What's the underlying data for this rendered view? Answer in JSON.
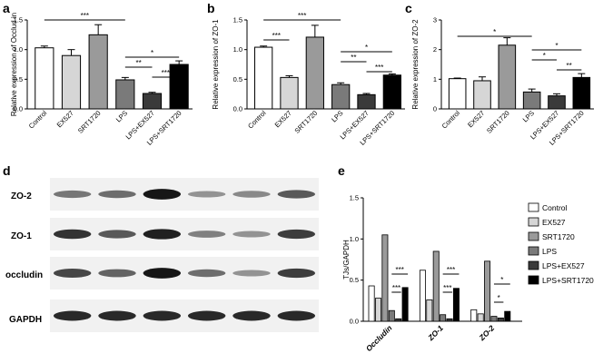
{
  "colors": {
    "Control": "#ffffff",
    "EX527": "#d6d6d6",
    "SRT1720": "#9a9a9a",
    "LPS": "#7a7a7a",
    "LPS+EX527": "#3a3a3a",
    "LPS+SRT1720": "#000000"
  },
  "panel_labels": {
    "a": "a",
    "b": "b",
    "c": "c",
    "d": "d",
    "e": "e"
  },
  "blot": {
    "rows": [
      "ZO-2",
      "ZO-1",
      "occludin",
      "GAPDH"
    ],
    "intensity": [
      [
        0.45,
        0.5,
        0.95,
        0.3,
        0.35,
        0.6
      ],
      [
        0.8,
        0.6,
        0.9,
        0.4,
        0.3,
        0.75
      ],
      [
        0.7,
        0.55,
        0.95,
        0.5,
        0.3,
        0.75
      ],
      [
        0.85,
        0.85,
        0.85,
        0.85,
        0.85,
        0.85
      ]
    ]
  },
  "chart_data": [
    {
      "type": "bar",
      "panel": "a",
      "ylabel": "Relative expression of Occlud in",
      "categories": [
        "Control",
        "EX527",
        "SRT1720",
        "LPS",
        "LPS+EX527",
        "LPS+SRT1720"
      ],
      "values": [
        1.03,
        0.9,
        1.25,
        0.49,
        0.26,
        0.75
      ],
      "errors": [
        0.03,
        0.1,
        0.17,
        0.04,
        0.02,
        0.06
      ],
      "ylim": [
        0,
        1.5
      ],
      "yticks": [
        "0.0",
        "0.5",
        "1.0",
        "1.5"
      ],
      "significance": [
        {
          "from": 0,
          "to": 3,
          "label": "***"
        },
        {
          "from": 3,
          "to": 5,
          "label": "*"
        },
        {
          "from": 3,
          "to": 4,
          "label": "**"
        },
        {
          "from": 4,
          "to": 5,
          "label": "***"
        }
      ]
    },
    {
      "type": "bar",
      "panel": "b",
      "ylabel": "Relative expression of ZO-1",
      "categories": [
        "Control",
        "EX527",
        "SRT1720",
        "LPS",
        "LPS+EX527",
        "LPS+SRT1720"
      ],
      "values": [
        1.04,
        0.53,
        1.21,
        0.41,
        0.24,
        0.57
      ],
      "errors": [
        0.02,
        0.03,
        0.2,
        0.03,
        0.02,
        0.02
      ],
      "ylim": [
        0,
        1.5
      ],
      "yticks": [
        "0.0",
        "0.5",
        "1.0",
        "1.5"
      ],
      "significance": [
        {
          "from": 0,
          "to": 3,
          "label": "***"
        },
        {
          "from": 0,
          "to": 1,
          "label": "***"
        },
        {
          "from": 3,
          "to": 5,
          "label": "*"
        },
        {
          "from": 3,
          "to": 4,
          "label": "**"
        },
        {
          "from": 4,
          "to": 5,
          "label": "***"
        }
      ]
    },
    {
      "type": "bar",
      "panel": "c",
      "ylabel": "Relative expression of ZO-2",
      "categories": [
        "Control",
        "EX527",
        "SRT1720",
        "LPS",
        "LPS+EX527",
        "LPS+SRT1720"
      ],
      "values": [
        1.02,
        0.95,
        2.15,
        0.57,
        0.44,
        1.06
      ],
      "errors": [
        0.02,
        0.13,
        0.25,
        0.1,
        0.07,
        0.13
      ],
      "ylim": [
        0,
        3
      ],
      "yticks": [
        "0",
        "1",
        "2",
        "3"
      ],
      "significance": [
        {
          "from": 0,
          "to": 3,
          "label": "*"
        },
        {
          "from": 3,
          "to": 5,
          "label": "*"
        },
        {
          "from": 3,
          "to": 4,
          "label": "*"
        },
        {
          "from": 4,
          "to": 5,
          "label": "**"
        }
      ]
    },
    {
      "type": "bar",
      "panel": "e",
      "ylabel": "TJs/GAPDH",
      "categories": [
        "Occludin",
        "ZO-1",
        "ZO-2"
      ],
      "ylim": [
        0,
        1.5
      ],
      "yticks": [
        "0.0",
        "0.5",
        "1.0",
        "1.5"
      ],
      "legend": "right",
      "series": [
        {
          "name": "Control",
          "values": [
            0.43,
            0.62,
            0.14
          ]
        },
        {
          "name": "EX527",
          "values": [
            0.28,
            0.26,
            0.09
          ]
        },
        {
          "name": "SRT1720",
          "values": [
            1.05,
            0.85,
            0.73
          ]
        },
        {
          "name": "LPS",
          "values": [
            0.13,
            0.08,
            0.06
          ]
        },
        {
          "name": "LPS+EX527",
          "values": [
            0.03,
            0.03,
            0.04
          ]
        },
        {
          "name": "LPS+SRT1720",
          "values": [
            0.41,
            0.4,
            0.12
          ]
        }
      ],
      "significance": [
        {
          "group": 0,
          "from": 3,
          "to": 5,
          "level": 1,
          "label": "***"
        },
        {
          "group": 0,
          "from": 3,
          "to": 4,
          "level": 0,
          "label": "***"
        },
        {
          "group": 1,
          "from": 3,
          "to": 5,
          "level": 1,
          "label": "***"
        },
        {
          "group": 1,
          "from": 3,
          "to": 4,
          "level": 0,
          "label": "***"
        },
        {
          "group": 2,
          "from": 3,
          "to": 5,
          "level": 1,
          "label": "*"
        },
        {
          "group": 2,
          "from": 3,
          "to": 4,
          "level": 0,
          "label": "*"
        }
      ]
    }
  ]
}
